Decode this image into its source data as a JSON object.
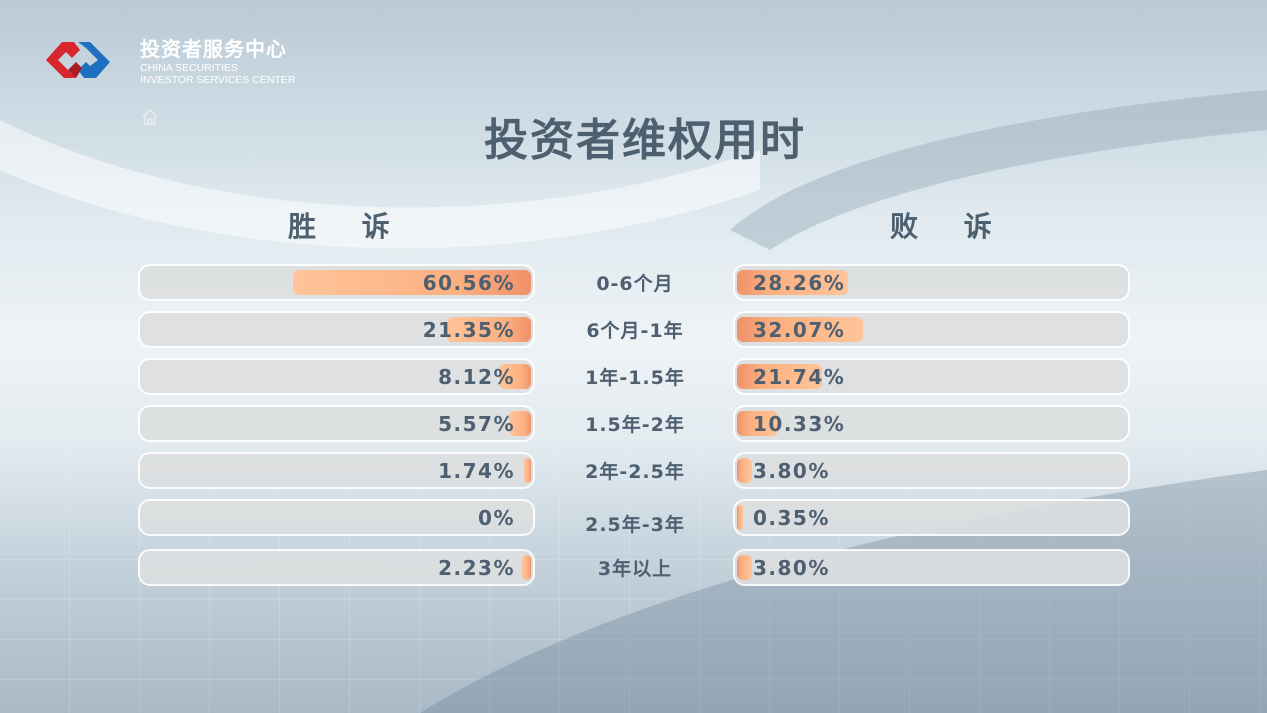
{
  "header": {
    "org_name_cn": "投资者服务中心",
    "org_name_en_line1": "CHINA SECURITIES",
    "org_name_en_line2": "INVESTOR SERVICES CENTER",
    "logo_colors": {
      "red": "#d8262e",
      "blue": "#1f6fc0"
    },
    "home_icon": "home-icon"
  },
  "chart_data": {
    "type": "bar",
    "title": "投资者维权用时",
    "categories": [
      "0-6个月",
      "6个月-1年",
      "1年-1.5年",
      "1.5年-2年",
      "2年-2.5年",
      "2.5年-3年",
      "3年以上"
    ],
    "series": [
      {
        "name": "胜 诉",
        "values": [
          60.56,
          21.35,
          8.12,
          5.57,
          1.74,
          0,
          2.23
        ],
        "labels": [
          "60.56%",
          "21.35%",
          "8.12%",
          "5.57%",
          "1.74%",
          "0%",
          "2.23%"
        ]
      },
      {
        "name": "败 诉",
        "values": [
          28.26,
          32.07,
          21.74,
          10.33,
          3.8,
          0.35,
          3.8
        ],
        "labels": [
          "28.26%",
          "32.07%",
          "21.74%",
          "10.33%",
          "3.80%",
          "0.35%",
          "3.80%"
        ]
      }
    ],
    "unit": "%",
    "xlim": [
      0,
      100
    ],
    "orientation": "horizontal-butterfly",
    "bar_color": "#fbb080",
    "track_color": "#dcdee0",
    "grid": false
  }
}
